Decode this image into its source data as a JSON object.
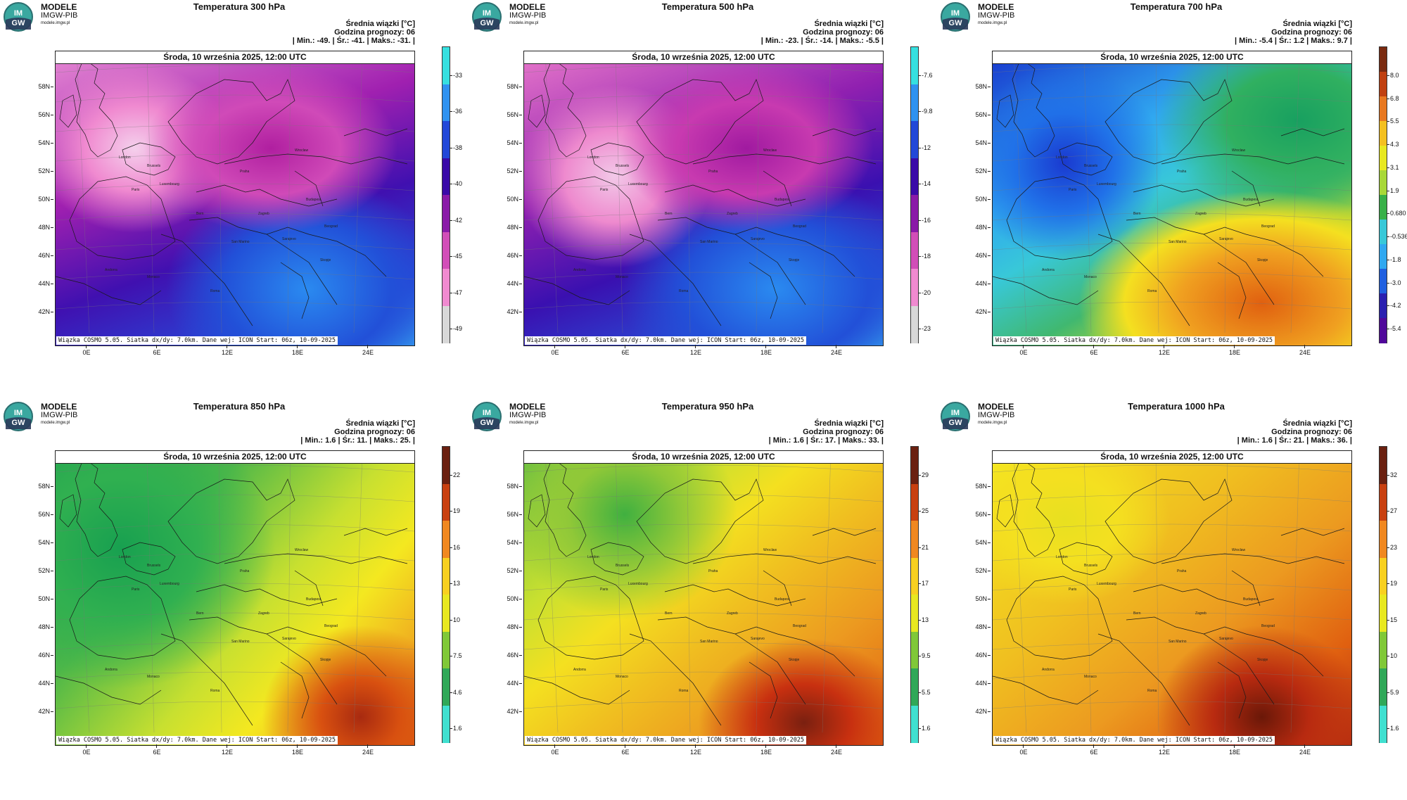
{
  "logo": {
    "line1": "MODELE",
    "line2": "IMGW-PIB",
    "line3": "modele.imgw.pl",
    "badge_top": "IM",
    "badge_bottom": "GW"
  },
  "common": {
    "label_mean": "Średnia wiązki [°C]",
    "label_hour": "Godzina prognozy: 06",
    "date": "Środa, 10 września 2025, 12:00 UTC",
    "footer": "Wiązka COSMO 5.05. Siatka dx/dy: 7.0km. Dane wej: ICON Start: 06z, 10-09-2025",
    "lat_labels": [
      "58N",
      "56N",
      "54N",
      "52N",
      "50N",
      "48N",
      "46N",
      "44N",
      "42N"
    ],
    "lon_labels": [
      "0E",
      "6E",
      "12E",
      "18E",
      "24E"
    ],
    "cities": [
      "London",
      "Brussels",
      "Luxembourg",
      "Paris",
      "Praha",
      "Wroclaw",
      "Budapest",
      "Zagreb",
      "Beograd",
      "San Marino",
      "Sarajevo",
      "Skopje",
      "Andorra",
      "Monaco",
      "Roma",
      "Bern"
    ]
  },
  "panels": [
    {
      "title": "Temperatura 300 hPa",
      "stats": "| Min.: -49. | Śr.: -41. | Maks.: -31. |",
      "scale": [
        "-33",
        "-36",
        "-38",
        "-40",
        "-42",
        "-45",
        "-47",
        "-49"
      ],
      "colors": [
        "#36e0e0",
        "#2f92f0",
        "#2248d8",
        "#3a0aa8",
        "#8a1aa8",
        "#d24eb8",
        "#f08ad0",
        "#d8d8d8"
      ]
    },
    {
      "title": "Temperatura 500 hPa",
      "stats": "| Min.: -23. | Śr.: -14. | Maks.: -5.5 |",
      "scale": [
        "-7.6",
        "-9.8",
        "-12",
        "-14",
        "-16",
        "-18",
        "-20",
        "-23"
      ],
      "colors": [
        "#36e0e0",
        "#2f92f0",
        "#2248d8",
        "#3a0aa8",
        "#8a1aa8",
        "#d24eb8",
        "#f08ad0",
        "#d8d8d8"
      ]
    },
    {
      "title": "Temperatura 700 hPa",
      "stats": "| Min.: -5.4 | Śr.: 1.2 | Maks.: 9.7 |",
      "scale": [
        "8.0",
        "6.8",
        "5.5",
        "4.3",
        "3.1",
        "1.9",
        "0.680",
        "-0.536",
        "-1.8",
        "-3.0",
        "-4.2",
        "-5.4"
      ],
      "colors": [
        "#7a2a10",
        "#c04010",
        "#e87820",
        "#f4c020",
        "#e8e820",
        "#a8d838",
        "#38b048",
        "#38c8d8",
        "#30a8f0",
        "#2060e0",
        "#2a20b0",
        "#50089a"
      ]
    },
    {
      "title": "Temperatura 850 hPa",
      "stats": "| Min.: 1.6 | Śr.: 11. | Maks.: 25. |",
      "scale": [
        "22",
        "19",
        "16",
        "13",
        "10",
        "7.5",
        "4.6",
        "1.6"
      ],
      "colors": [
        "#6a2010",
        "#c84010",
        "#f08820",
        "#f8d020",
        "#e8e820",
        "#80c838",
        "#30a858",
        "#40e0d0"
      ]
    },
    {
      "title": "Temperatura 950 hPa",
      "stats": "| Min.: 1.6 | Śr.: 17. | Maks.: 33. |",
      "scale": [
        "29",
        "25",
        "21",
        "17",
        "13",
        "9.5",
        "5.5",
        "1.6"
      ],
      "colors": [
        "#6a2010",
        "#c84010",
        "#f08820",
        "#f8d020",
        "#e8e820",
        "#80c838",
        "#30a858",
        "#40e0d0"
      ]
    },
    {
      "title": "Temperatura 1000 hPa",
      "stats": "| Min.: 1.6 | Śr.: 21. | Maks.: 36. |",
      "scale": [
        "32",
        "27",
        "23",
        "19",
        "15",
        "10",
        "5.9",
        "1.6"
      ],
      "colors": [
        "#6a2010",
        "#c84010",
        "#f08820",
        "#f8d020",
        "#e8e820",
        "#80c838",
        "#30a858",
        "#40e0d0"
      ]
    }
  ]
}
